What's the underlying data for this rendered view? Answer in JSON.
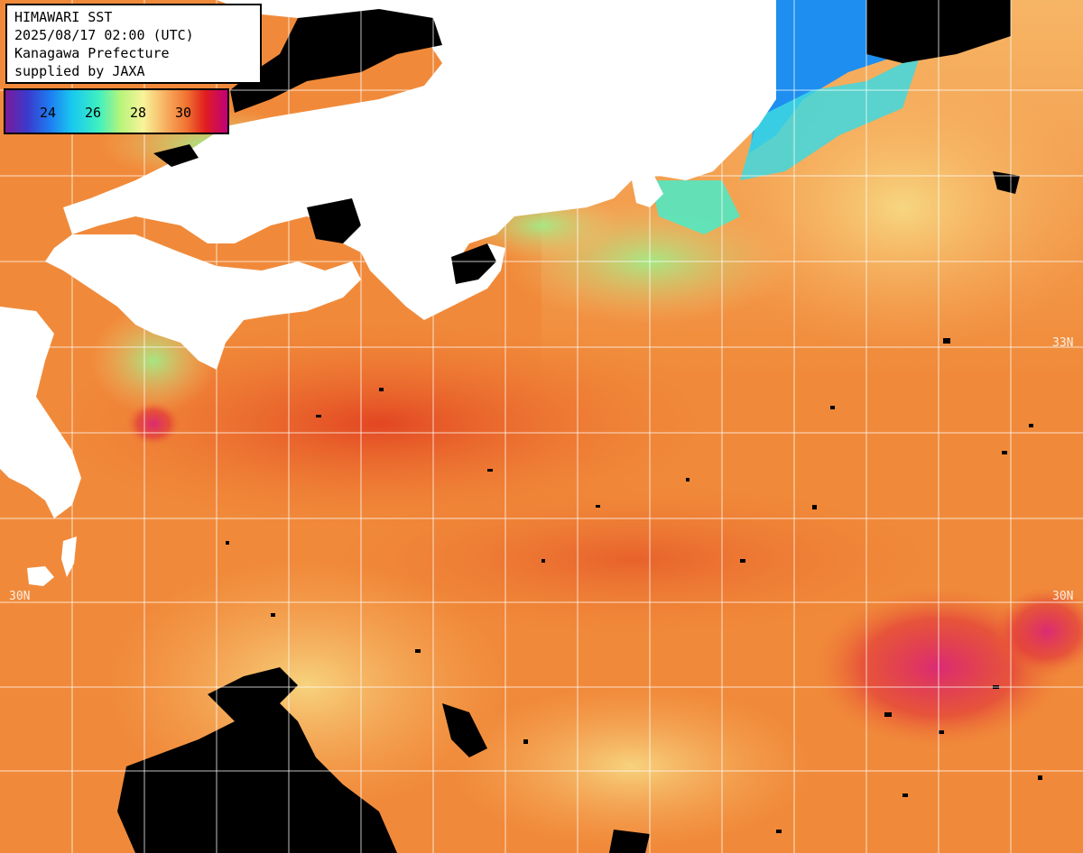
{
  "info": {
    "title": "HIMAWARI SST",
    "datetime": "2025/08/17 02:00 (UTC)",
    "region": "Kanagawa Prefecture",
    "credit": "supplied by JAXA"
  },
  "legend": {
    "ticks": [
      "24",
      "26",
      "28",
      "30"
    ],
    "colors": [
      "#7a1a9a",
      "#3a3acc",
      "#1e7cf0",
      "#19c8f0",
      "#3ef0c0",
      "#b8f47a",
      "#f8f49a",
      "#f8b060",
      "#f07030",
      "#e01e1e",
      "#c0007a"
    ]
  },
  "grid": {
    "latitude_labels_right": [
      "33N",
      "30N"
    ],
    "latitude_labels_left": [
      "30N"
    ]
  },
  "colors": {
    "land": "#ffffff",
    "cloud": "#000000",
    "gridline": "#ffffff"
  }
}
